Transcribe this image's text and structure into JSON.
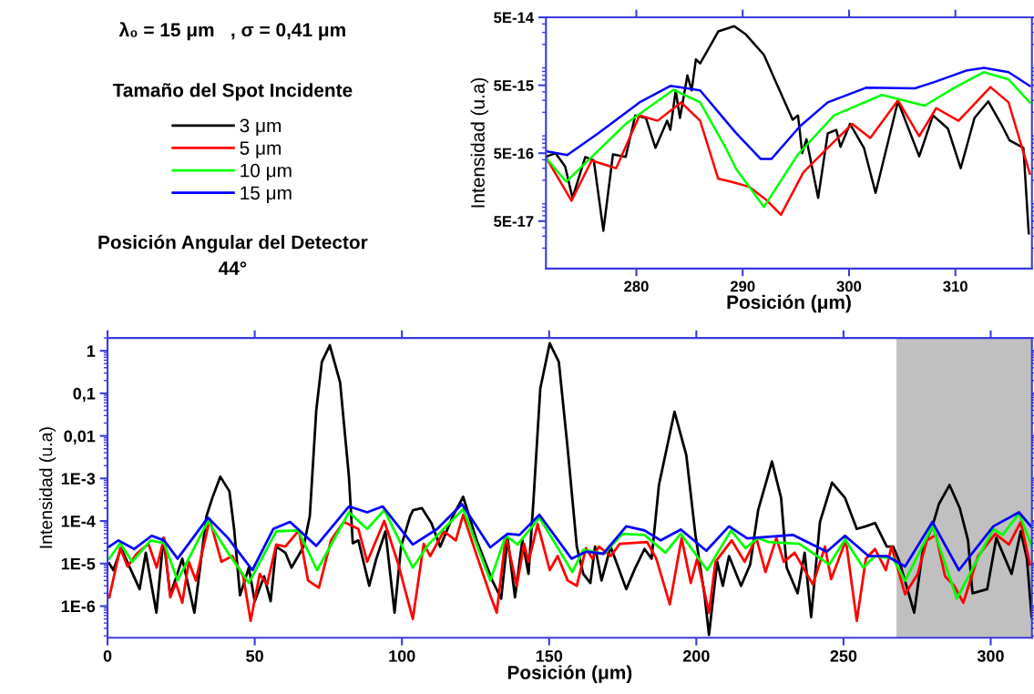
{
  "chart_data": [
    {
      "type": "line",
      "title": "λ₀ = 15 μm   , σ = 0,41 μm",
      "legend_title": "Tamaño del Spot Incidente",
      "legend": "top left",
      "annotations": [
        "Posición Angular del Detector\n44°"
      ],
      "xlabel": "Posición (μm)",
      "ylabel": "Intensidad (u.a)",
      "log": "y",
      "grid": false,
      "xlim": [
        0,
        314
      ],
      "xticks": [
        0,
        50,
        100,
        150,
        200,
        250,
        300
      ],
      "ylim": [
        1.8e-07,
        2
      ],
      "yticks": [
        {
          "value": 1e-06,
          "label": "1E-6"
        },
        {
          "value": 1e-05,
          "label": "1E-5"
        },
        {
          "value": 0.0001,
          "label": "1E-4"
        },
        {
          "value": 0.001,
          "label": "1E-3"
        },
        {
          "value": 0.01,
          "label": "0,01"
        },
        {
          "value": 0.1,
          "label": "0,1"
        },
        {
          "value": 1,
          "label": "1"
        }
      ],
      "bands": [
        {
          "axis": "x",
          "from": 268,
          "to": 314,
          "color": "#c0c0c0"
        }
      ],
      "series": [
        {
          "name": "3 μm",
          "color": "#000000",
          "x": [
            0.6,
            2,
            4.6,
            10.9,
            13,
            16.6,
            19,
            21.3,
            25.4,
            29.5,
            33.6,
            35.6,
            38.3,
            41.4,
            43,
            45,
            48,
            50,
            53.2,
            55.4,
            57.3,
            60.4,
            62.5,
            66.6,
            68.7,
            70.9,
            72.8,
            75.5,
            79,
            82,
            83.3,
            85.2,
            88.9,
            91.3,
            94.4,
            97.5,
            99.7,
            102.8,
            103.8,
            106.8,
            110,
            113,
            117.3,
            120.8,
            125.4,
            130.7,
            133.7,
            135.9,
            138.4,
            140.9,
            143,
            144.6,
            147,
            150.2,
            153.3,
            156.3,
            159.4,
            161.6,
            164,
            165.6,
            167.8,
            170.9,
            176.2,
            179.3,
            182.4,
            184.8,
            187.3,
            192.6,
            196.6,
            199.7,
            202.8,
            204.3,
            207.1,
            209,
            211.1,
            215.2,
            218.3,
            221,
            225.7,
            228.8,
            230.7,
            234.4,
            236.8,
            239,
            242,
            246.1,
            250.5,
            254.5,
            257.6,
            260.7,
            264.7,
            266.9,
            269,
            274,
            277.1,
            280.2,
            282.4,
            286,
            289.5,
            292.3,
            293.8,
            298.8,
            301.9,
            307.1,
            310.2,
            312.3,
            313.9
          ],
          "values": [
            1e-05,
            7e-06,
            2.3e-05,
            2.5e-06,
            1.8e-05,
            7e-07,
            4e-05,
            1.8e-06,
            1.3e-05,
            7e-07,
            0.00013,
            0.00035,
            0.0011,
            0.0005,
            6.5e-05,
            1.8e-06,
            8e-06,
            1.3e-06,
            5e-06,
            1.3e-06,
            2.5e-05,
            1.8e-05,
            8e-06,
            2.5e-05,
            0.00013,
            0.04,
            0.55,
            1.35,
            0.18,
            0.0011,
            3e-05,
            3.5e-05,
            3e-06,
            1.3e-05,
            5.7e-05,
            7e-07,
            2.5e-05,
            0.00013,
            0.00018,
            0.0002,
            9e-05,
            2.5e-05,
            0.00013,
            0.00037,
            3.5e-05,
            4e-06,
            1.5e-06,
            4e-05,
            1.6e-06,
            3.5e-05,
            5.7e-06,
            0.00025,
            0.13,
            1.5,
            0.55,
            0.005,
            2.5e-05,
            5.7e-06,
            3.5e-06,
            2.5e-05,
            4e-06,
            2.5e-05,
            2.5e-06,
            8e-06,
            2.2e-05,
            1.3e-05,
            0.0007,
            0.037,
            0.0035,
            4.7e-05,
            1.8e-06,
            2.1e-07,
            1.1e-05,
            3e-06,
            1.5e-05,
            3e-06,
            9.5e-06,
            0.00018,
            0.0025,
            0.00035,
            8e-06,
            2e-06,
            1.8e-05,
            5.5e-07,
            9.5e-05,
            0.0008,
            0.00035,
            6.5e-05,
            7.5e-05,
            9e-05,
            2.5e-05,
            2.5e-05,
            1.1e-05,
            7e-07,
            2.5e-05,
            7.5e-05,
            0.00025,
            0.0007,
            0.0002,
            3.5e-05,
            2e-06,
            2.5e-06,
            4e-05,
            5.7e-06,
            5.7e-05,
            1.3e-05,
            5.5e-07
          ]
        },
        {
          "name": "5 μm",
          "color": "#ff0000",
          "x": [
            0.6,
            4.3,
            6.8,
            9.9,
            13.9,
            16.7,
            19.2,
            21.3,
            23.2,
            25.4,
            27.6,
            30,
            34.7,
            38.7,
            42.4,
            46.1,
            48.6,
            51.7,
            54.2,
            57.3,
            60.4,
            65,
            68.1,
            71.8,
            75.9,
            80.2,
            85.2,
            88.2,
            94,
            98.8,
            103.7,
            107.4,
            109.6,
            114.2,
            118.3,
            120.8,
            125.1,
            130,
            132.2,
            135.3,
            139,
            141.5,
            143,
            146.1,
            150.2,
            152.9,
            156.3,
            159.4,
            162.5,
            164.7,
            166.9,
            170.9,
            174,
            183.3,
            186.4,
            191,
            195,
            198.1,
            200.3,
            204.3,
            206.5,
            212,
            216.4,
            220.4,
            223.5,
            227.2,
            229.7,
            233.4,
            239.6,
            243.7,
            245.8,
            250.8,
            254.5,
            257.6,
            260.7,
            264.4,
            266.3,
            270.9,
            275.2,
            278.3,
            281.4,
            284.5,
            287.6,
            290.7,
            295.7,
            301.5,
            306.2,
            310.2,
            313.3
          ],
          "values": [
            1.6e-06,
            2.3e-05,
            8.5e-06,
            1.7e-05,
            2.9e-05,
            8e-06,
            4e-05,
            1.6e-06,
            3.5e-06,
            1.2e-06,
            1.1e-05,
            4e-06,
            0.00011,
            1.1e-05,
            1.5e-05,
            5e-06,
            4.5e-07,
            5.7e-06,
            3.2e-06,
            2.8e-05,
            2.5e-05,
            6e-05,
            4e-06,
            2.7e-06,
            3.5e-05,
            9.5e-05,
            6.5e-05,
            1.1e-05,
            0.0001,
            9.5e-06,
            5e-07,
            2.9e-05,
            1.5e-05,
            5.7e-05,
            3.5e-05,
            0.00014,
            1.8e-05,
            1.8e-06,
            7e-07,
            4.5e-05,
            3e-06,
            2.9e-05,
            1.1e-05,
            8.5e-05,
            7e-06,
            1.5e-05,
            4e-06,
            3e-06,
            2.3e-05,
            1.3e-05,
            2.5e-05,
            1.5e-05,
            2.9e-05,
            3.2e-05,
            1.3e-05,
            1.1e-06,
            4e-05,
            3.5e-06,
            1.3e-05,
            7e-07,
            1.1e-05,
            3.5e-05,
            1.1e-05,
            4e-05,
            6.3e-06,
            4e-05,
            1.1e-05,
            1.8e-05,
            3.2e-06,
            2.5e-05,
            4.3e-06,
            3.5e-05,
            4.5e-07,
            1.3e-05,
            2.2e-05,
            7e-06,
            2.5e-05,
            1.9e-06,
            5.7e-06,
            3.5e-05,
            4.7e-05,
            5e-06,
            3e-06,
            1.2e-06,
            1.5e-05,
            5e-05,
            2.8e-05,
            9.5e-05,
            9.5e-06
          ]
        },
        {
          "name": "10 μm",
          "color": "#00ff00",
          "x": [
            0.6,
            4.3,
            8.4,
            14.6,
            19.2,
            23.8,
            34.1,
            40.9,
            48,
            57.3,
            64.7,
            71.2,
            82,
            88.2,
            94,
            103.7,
            109,
            120.8,
            130,
            135.3,
            139.3,
            146.7,
            157.9,
            161.6,
            168.7,
            174.9,
            182.4,
            189.5,
            194.7,
            203.7,
            211.8,
            216.7,
            221,
            224.5,
            235,
            245.2,
            250.5,
            256.7,
            260.7,
            266.9,
            270.9,
            280.2,
            288.5,
            300.9,
            304,
            309.6,
            314
          ],
          "values": [
            1.3e-05,
            3e-05,
            1.1e-05,
            3.5e-05,
            3e-05,
            4e-06,
            0.0001,
            1.8e-05,
            3.5e-06,
            5.7e-05,
            6e-05,
            7e-06,
            0.00016,
            6.5e-05,
            0.00018,
            8e-06,
            2.8e-05,
            0.00019,
            4e-06,
            4.5e-05,
            2.8e-05,
            0.00012,
            6.3e-06,
            2.1e-05,
            1.7e-05,
            5e-05,
            4.7e-05,
            1.8e-05,
            5e-05,
            7e-06,
            6e-05,
            2.3e-05,
            4e-05,
            3.2e-05,
            2.9e-05,
            9.5e-06,
            3.7e-05,
            8e-06,
            1.5e-05,
            1.3e-05,
            3.9e-06,
            7.5e-05,
            1.5e-06,
            6.5e-05,
            4.7e-05,
            0.00015,
            2.5e-05
          ]
        },
        {
          "name": "15 μm",
          "color": "#0000ff",
          "x": [
            0.6,
            3.7,
            9,
            15,
            19.2,
            23.8,
            34.1,
            40.9,
            49.2,
            56.3,
            62,
            70.9,
            82,
            88.2,
            93.5,
            103.7,
            112,
            120.4,
            130,
            135.9,
            139.9,
            146.7,
            157.6,
            162.5,
            168.4,
            176.2,
            182.4,
            187.9,
            194.7,
            203.4,
            211.1,
            217.3,
            232.8,
            244.3,
            250.5,
            258.5,
            264.7,
            270.9,
            280.2,
            289.2,
            300.9,
            309.6,
            314
          ],
          "values": [
            2.5e-05,
            3.5e-05,
            2.2e-05,
            4.5e-05,
            3.5e-05,
            1.3e-05,
            0.00012,
            4e-05,
            7e-06,
            6.5e-05,
            9.5e-05,
            2.6e-05,
            0.00022,
            0.00016,
            0.00022,
            2.8e-05,
            6.5e-05,
            0.00025,
            2.4e-05,
            5e-05,
            4.7e-05,
            0.00014,
            1.3e-05,
            1.9e-05,
            1.7e-05,
            7.5e-05,
            6e-05,
            3.5e-05,
            6.3e-05,
            2e-05,
            7.5e-05,
            3.9e-05,
            4.7e-05,
            1.9e-05,
            4.5e-05,
            1.5e-05,
            1.5e-05,
            8.5e-06,
            9.5e-05,
            7e-06,
            7.5e-05,
            0.00016,
            7e-05
          ]
        }
      ]
    },
    {
      "type": "line",
      "xlabel": "Posición (μm)",
      "ylabel": "Intensidad (u.a)",
      "log": "y",
      "grid": false,
      "xlim": [
        271.5,
        317.2
      ],
      "xticks": [
        280,
        290,
        300,
        310
      ],
      "ylim": [
        1e-17,
        5e-14
      ],
      "yticks": [
        {
          "value": 5e-17,
          "label": "5E-17"
        },
        {
          "value": 5e-16,
          "label": "5E-16"
        },
        {
          "value": 5e-15,
          "label": "5E-15"
        },
        {
          "value": 5e-14,
          "label": "5E-14"
        }
      ],
      "series": [
        {
          "color": "#000000",
          "x": [
            271.6,
            272.4,
            273.3,
            274,
            275.2,
            276,
            276.9,
            277.8,
            279,
            279.9,
            280.9,
            281.8,
            282.9,
            283.2,
            283.7,
            284.1,
            284.8,
            285.2,
            285.6,
            286,
            287.1,
            287.7,
            289.2,
            290.3,
            292,
            293.1,
            294.7,
            295.2,
            295.6,
            296,
            297.1,
            298,
            298.8,
            299.2,
            300.1,
            301.4,
            302.5,
            304.6,
            306.6,
            307.9,
            309.3,
            310.5,
            311.8,
            313.1,
            314.3,
            315.1,
            316.4,
            316.9
          ],
          "values": [
            4.5e-16,
            5e-16,
            3.2e-16,
            1.1e-16,
            4.4e-16,
            3.9e-16,
            3.6e-17,
            4.8e-16,
            4.4e-16,
            1.8e-15,
            1.65e-15,
            6e-16,
            1.5e-15,
            1.1e-15,
            4.2e-15,
            1.65e-15,
            7e-15,
            4.2e-15,
            1.2e-14,
            1.05e-14,
            2.1e-14,
            3.1e-14,
            3.7e-14,
            2.8e-14,
            1.4e-14,
            5.7e-15,
            1.55e-15,
            1.8e-15,
            5e-16,
            8e-16,
            1.1e-16,
            9.8e-16,
            1.1e-15,
            6.2e-16,
            1.35e-15,
            6e-16,
            1.3e-16,
            2.9e-15,
            4.5e-16,
            1.8e-15,
            1.15e-15,
            3e-16,
            1.65e-15,
            2.9e-15,
            1.35e-15,
            7.7e-16,
            6e-16,
            3.3e-17
          ]
        },
        {
          "color": "#ff0000",
          "x": [
            271.6,
            273.9,
            275.8,
            278.1,
            280.3,
            282,
            284.2,
            286,
            287.7,
            288.9,
            290.6,
            292.3,
            293.6,
            295.7,
            298,
            300.3,
            302,
            304.6,
            306.6,
            308.2,
            310.3,
            313.3,
            315,
            317
          ],
          "values": [
            4.1e-16,
            1e-16,
            3.9e-16,
            3e-16,
            1.8e-15,
            1.5e-15,
            2.8e-15,
            1.5e-15,
            2.1e-16,
            1.9e-16,
            1.6e-16,
            1e-16,
            6.2e-17,
            2.6e-16,
            6e-16,
            1.35e-15,
            8.4e-16,
            3e-15,
            8.9e-16,
            2.3e-15,
            1.5e-15,
            4.7e-15,
            2.8e-15,
            2.5e-16
          ]
        },
        {
          "color": "#00ff00",
          "x": [
            271.6,
            273.4,
            275.6,
            279,
            283.5,
            286,
            288.4,
            289.4,
            292,
            295.2,
            298.6,
            303.1,
            307.1,
            309.9,
            312.7,
            315,
            317
          ],
          "values": [
            4.1e-16,
            1.9e-16,
            4.1e-16,
            1.35e-15,
            4.3e-15,
            2.8e-15,
            6e-16,
            2.9e-16,
            8.1e-17,
            4.8e-16,
            1.8e-15,
            3.6e-15,
            2.5e-15,
            4.6e-15,
            7.8e-15,
            6.1e-15,
            2.8e-15
          ]
        },
        {
          "color": "#0000ff",
          "x": [
            271.6,
            273.5,
            276.4,
            280.3,
            283.2,
            286,
            288.4,
            289.4,
            291.7,
            292.7,
            295.4,
            298,
            301.6,
            306.2,
            308.2,
            311,
            312.7,
            315,
            317
          ],
          "values": [
            5.3e-16,
            4.7e-16,
            9.8e-16,
            2.8e-15,
            4.9e-15,
            4.2e-15,
            1.5e-15,
            9.8e-16,
            4.1e-16,
            4.1e-16,
            1.25e-15,
            2.8e-15,
            4.6e-15,
            4.5e-15,
            5.7e-15,
            8.2e-15,
            9e-15,
            7.8e-15,
            4.9e-15
          ]
        }
      ]
    }
  ]
}
